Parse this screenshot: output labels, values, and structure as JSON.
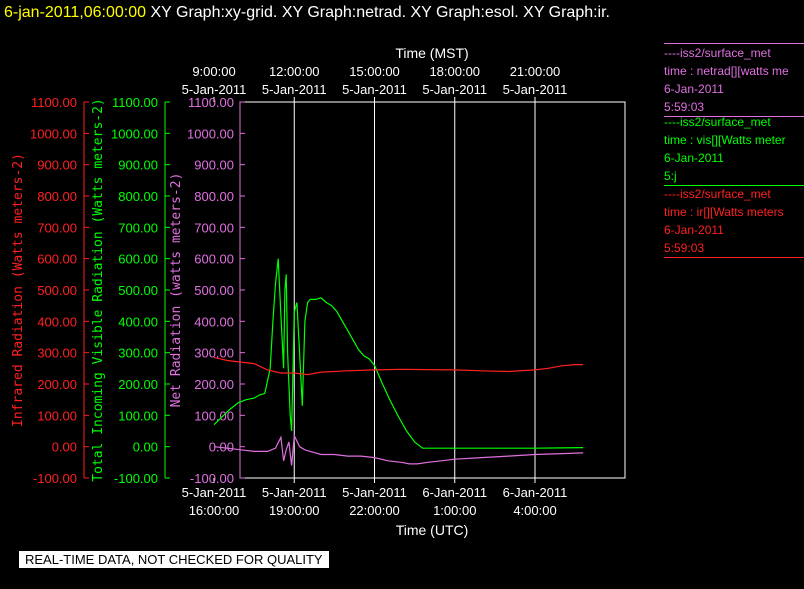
{
  "title": {
    "timestamp": "6-jan-2011,06:00:00",
    "graphs": "XY Graph:xy-grid.  XY Graph:netrad.  XY Graph:esol.  XY Graph:ir."
  },
  "legend": [
    {
      "color": "#e070e0",
      "lines": [
        "----iss2/surface_met",
        "time : netrad[][watts me",
        "6-Jan-2011",
        "5:59:03"
      ]
    },
    {
      "color": "#00ff00",
      "lines": [
        "----iss2/surface_met",
        "time : vis[][Watts meter",
        "6-Jan-2011",
        "5:j"
      ]
    },
    {
      "color": "#ff2020",
      "lines": [
        "----iss2/surface_met",
        "time : ir[][Watts meters",
        "6-Jan-2011",
        "5:59:03"
      ]
    }
  ],
  "banner": "REAL-TIME DATA, NOT CHECKED FOR QUALITY",
  "chart_data": {
    "type": "line",
    "x_unit": "hours since 5-Jan-2011 16:00 UTC",
    "xlim": [
      0,
      13.8
    ],
    "ylim": [
      -100,
      1100
    ],
    "grid": true,
    "top_axis": {
      "label": "Time (MST)",
      "ticks": [
        {
          "x": 0,
          "date": "5-Jan-2011",
          "time": "9:00:00"
        },
        {
          "x": 3,
          "date": "5-Jan-2011",
          "time": "12:00:00"
        },
        {
          "x": 6,
          "date": "5-Jan-2011",
          "time": "15:00:00"
        },
        {
          "x": 9,
          "date": "5-Jan-2011",
          "time": "18:00:00"
        },
        {
          "x": 12,
          "date": "5-Jan-2011",
          "time": "21:00:00"
        }
      ]
    },
    "bottom_axis": {
      "label": "Time (UTC)",
      "ticks": [
        {
          "x": 0,
          "date": "5-Jan-2011",
          "time": "16:00:00"
        },
        {
          "x": 3,
          "date": "5-Jan-2011",
          "time": "19:00:00"
        },
        {
          "x": 6,
          "date": "5-Jan-2011",
          "time": "22:00:00"
        },
        {
          "x": 9,
          "date": "6-Jan-2011",
          "time": "1:00:00"
        },
        {
          "x": 12,
          "date": "6-Jan-2011",
          "time": "4:00:00"
        }
      ]
    },
    "y_ticks": [
      "-100.00",
      "0.00",
      "100.00",
      "200.00",
      "300.00",
      "400.00",
      "500.00",
      "600.00",
      "700.00",
      "800.00",
      "900.00",
      "1000.00",
      "1100.00"
    ],
    "y_axes": [
      {
        "label": "Infrared Radiation (Watts meters-2)",
        "color": "#ff2020"
      },
      {
        "label": "Total Incoming Visible Radiation (Watts meters-2)",
        "color": "#00ff00"
      },
      {
        "label": "Net Radiation (watts meters-2)",
        "color": "#e070e0"
      }
    ],
    "series": [
      {
        "color": "#00ff00",
        "x": [
          0,
          0.3,
          0.6,
          0.9,
          1.2,
          1.5,
          1.7,
          1.9,
          2.1,
          2.2,
          2.3,
          2.4,
          2.5,
          2.6,
          2.65,
          2.7,
          2.75,
          2.8,
          2.85,
          2.9,
          3.0,
          3.1,
          3.2,
          3.3,
          3.4,
          3.5,
          3.6,
          3.8,
          4.0,
          4.2,
          4.4,
          4.6,
          4.8,
          5.0,
          5.2,
          5.4,
          5.6,
          5.8,
          6.0,
          6.3,
          6.6,
          6.9,
          7.2,
          7.5,
          7.8,
          8.1,
          8.3,
          8.5,
          9.0,
          10,
          11,
          12,
          13,
          13.8
        ],
        "y": [
          70,
          95,
          120,
          140,
          150,
          155,
          165,
          170,
          250,
          400,
          520,
          600,
          420,
          250,
          500,
          550,
          300,
          200,
          100,
          50,
          430,
          460,
          300,
          130,
          400,
          460,
          470,
          470,
          475,
          460,
          450,
          430,
          400,
          370,
          340,
          310,
          290,
          280,
          260,
          200,
          145,
          95,
          50,
          15,
          -5,
          -5,
          -5,
          -5,
          -5,
          -5,
          -5,
          -5,
          -4,
          -3
        ]
      },
      {
        "color": "#ff2020",
        "x": [
          0,
          0.5,
          1.0,
          1.5,
          2.0,
          2.5,
          3.0,
          3.5,
          4.0,
          5.0,
          6.0,
          7.0,
          8.0,
          9.0,
          10.0,
          11.0,
          12.0,
          12.5,
          13.0,
          13.5,
          13.8
        ],
        "y": [
          285,
          275,
          270,
          265,
          245,
          235,
          235,
          230,
          238,
          242,
          245,
          247,
          246,
          245,
          242,
          240,
          245,
          250,
          258,
          262,
          262
        ]
      },
      {
        "color": "#e070e0",
        "x": [
          0,
          0.5,
          1.0,
          1.5,
          2.0,
          2.3,
          2.5,
          2.6,
          2.7,
          2.8,
          2.9,
          3.0,
          3.2,
          3.4,
          3.6,
          4.0,
          4.5,
          5.0,
          5.5,
          6.0,
          6.5,
          7.0,
          7.3,
          7.6,
          8.0,
          8.5,
          9.0,
          10.0,
          11.0,
          12.0,
          13.0,
          13.8
        ],
        "y": [
          0,
          -5,
          -10,
          -15,
          -15,
          -5,
          30,
          -45,
          -10,
          15,
          -60,
          35,
          0,
          -10,
          -15,
          -25,
          -25,
          -30,
          -30,
          -35,
          -45,
          -50,
          -55,
          -55,
          -50,
          -45,
          -40,
          -35,
          -30,
          -25,
          -22,
          -20
        ]
      }
    ]
  }
}
